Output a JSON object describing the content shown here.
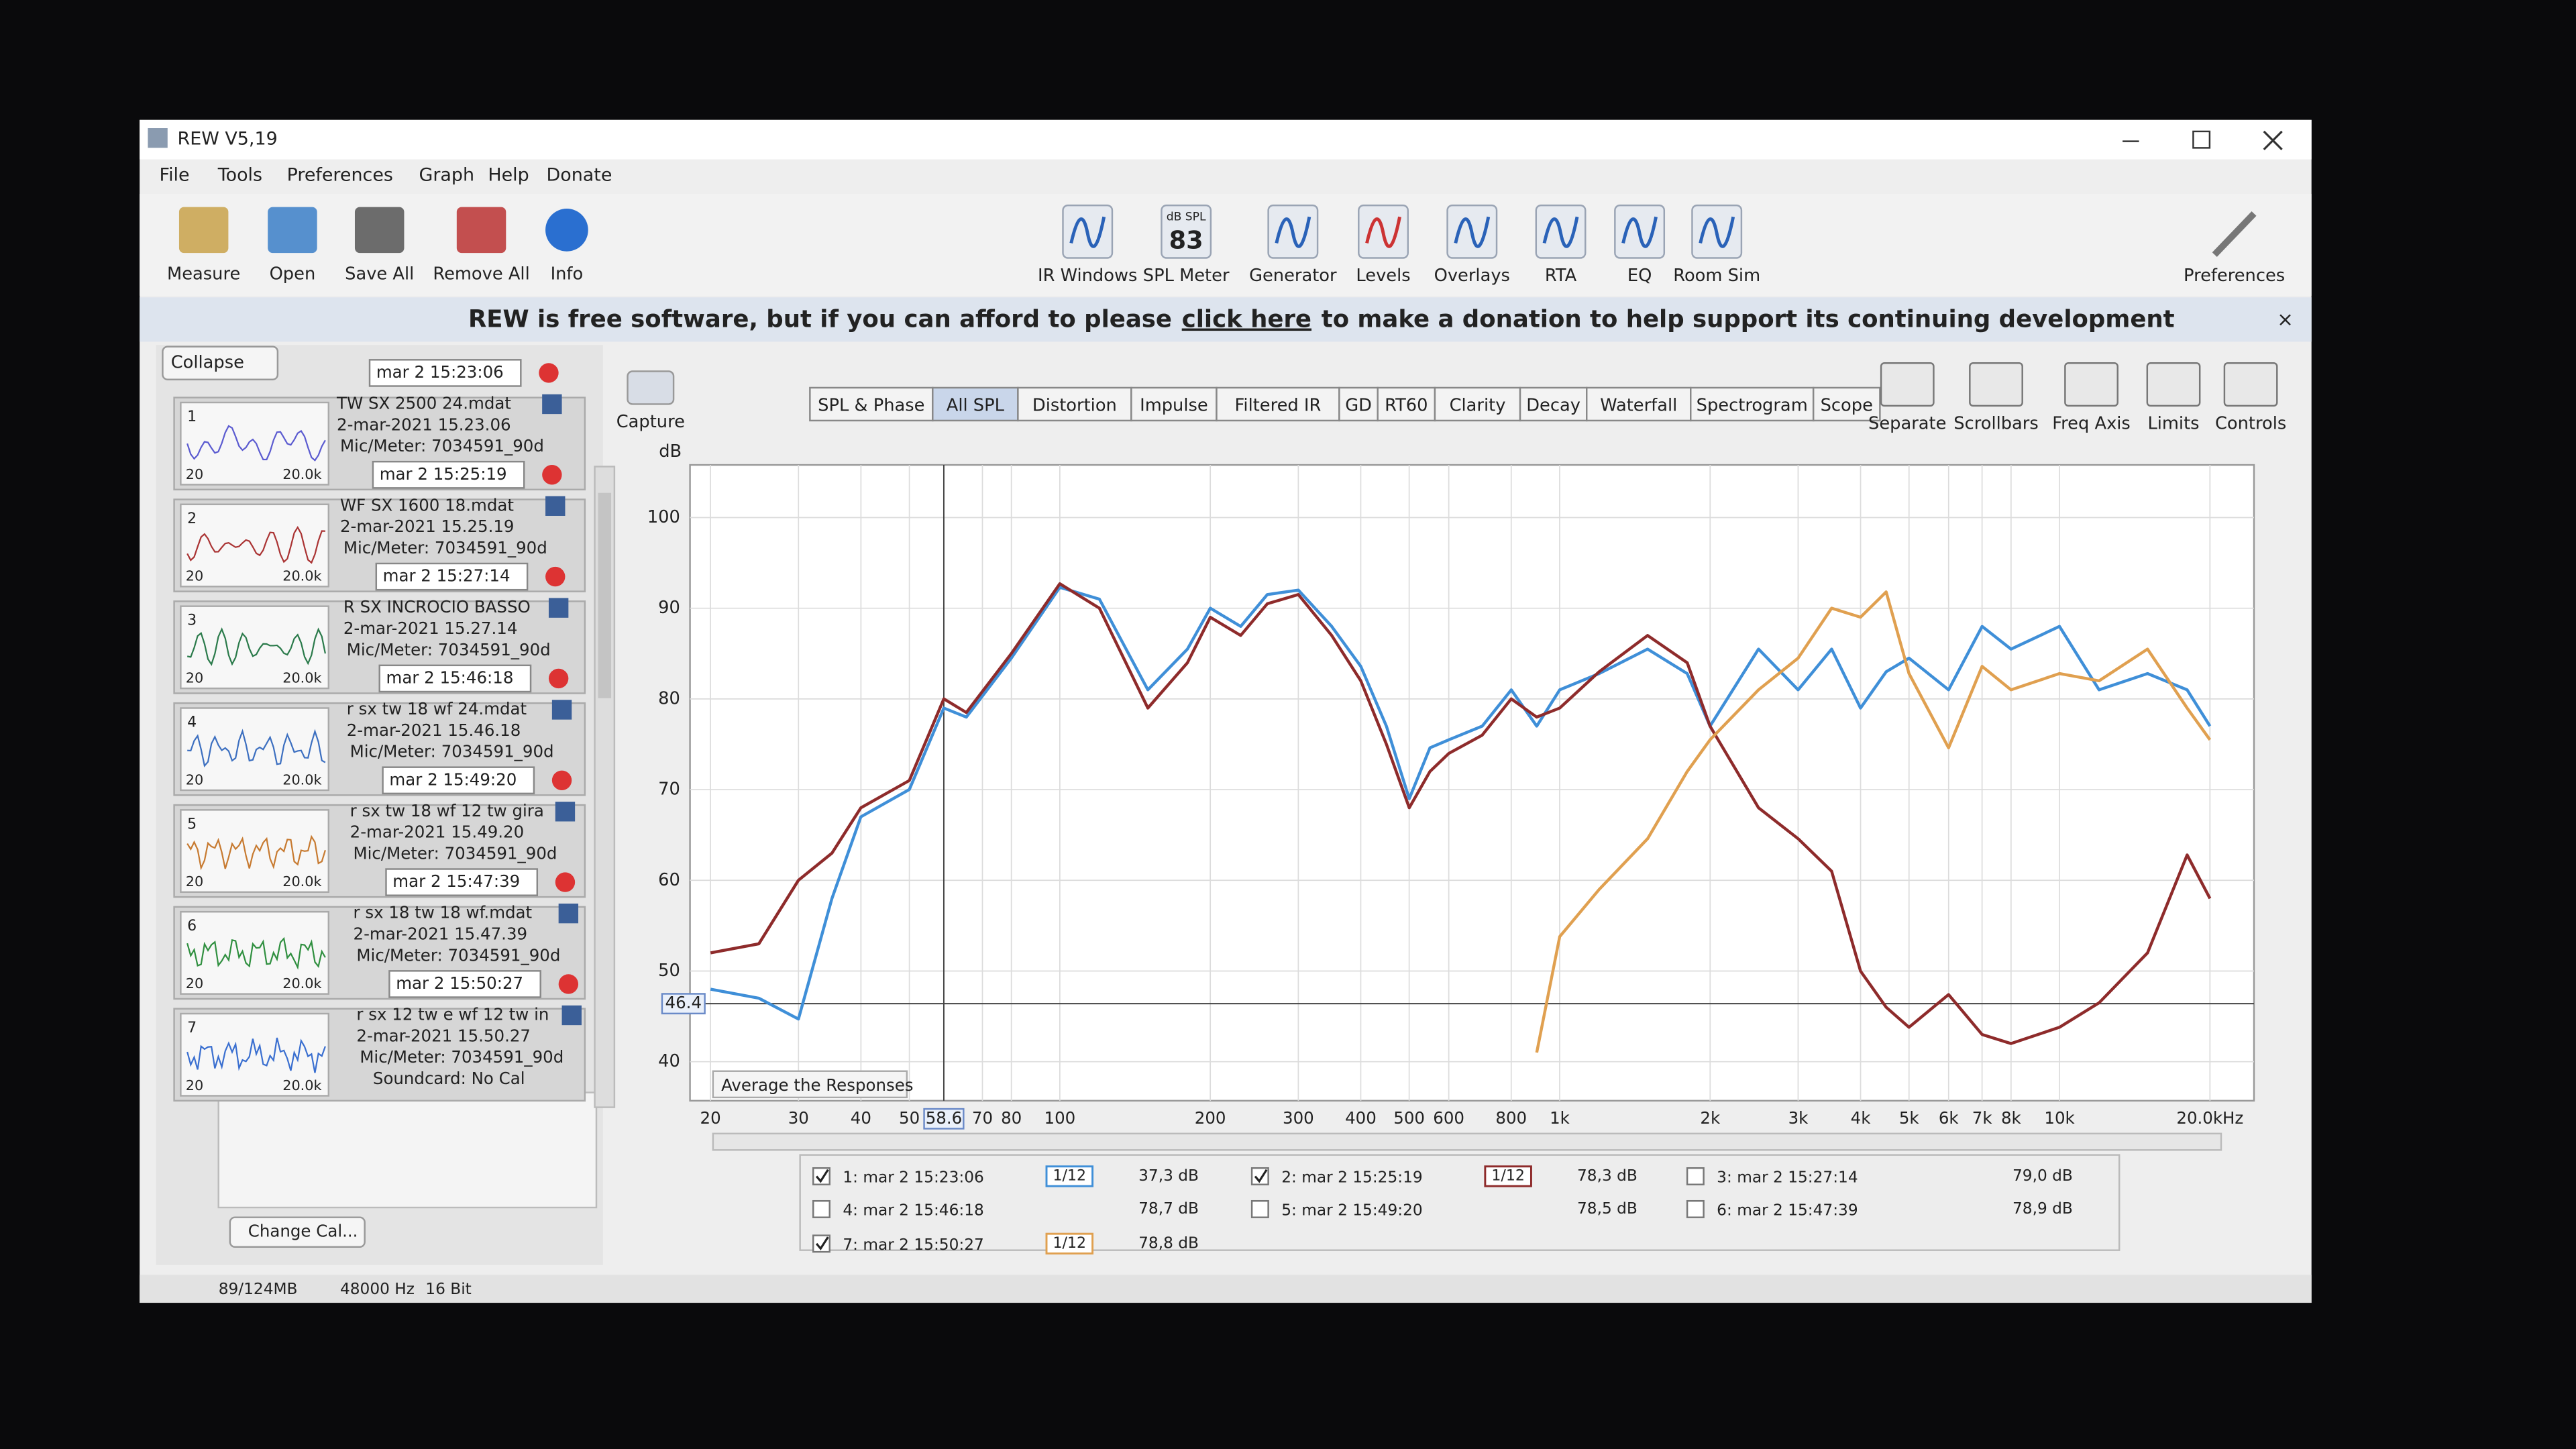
{
  "window": {
    "title": "REW V5,19"
  },
  "menu": [
    "File",
    "Tools",
    "Preferences",
    "Graph",
    "Help",
    "Donate"
  ],
  "toolbar_left": [
    "Measure",
    "Open",
    "Save All",
    "Remove All",
    "Info"
  ],
  "toolbar_center": [
    "IR Windows",
    "SPL Meter",
    "Generator",
    "Levels",
    "Overlays",
    "RTA",
    "EQ",
    "Room Sim"
  ],
  "spl_meter": {
    "unit": "dB SPL",
    "reading": 83
  },
  "toolbar_right": [
    "Preferences"
  ],
  "banner": {
    "before": "REW is free software, but if you can afford to please",
    "link": "click here",
    "after": "to make a donation to help support its continuing development"
  },
  "collapse": "Collapse",
  "thumb_axis": [
    "20",
    "20.0k"
  ],
  "measurements": [
    {
      "index": 1,
      "stamp": "mar 2 15:23:06",
      "name": "TW SX 2500 24.mdat",
      "date": "2-mar-2021 15.23.06",
      "mic": "Mic/Meter: 7034591_90d"
    },
    {
      "index": 2,
      "stamp": "mar 2 15:25:19",
      "name": "WF SX 1600 18.mdat",
      "date": "2-mar-2021 15.25.19",
      "mic": "Mic/Meter: 7034591_90d"
    },
    {
      "index": 3,
      "stamp": "mar 2 15:27:14",
      "name": "R SX INCROCIO BASSO",
      "date": "2-mar-2021 15.27.14",
      "mic": "Mic/Meter: 7034591_90d"
    },
    {
      "index": 4,
      "stamp": "mar 2 15:46:18",
      "name": "r sx tw 18 wf 24.mdat",
      "date": "2-mar-2021 15.46.18",
      "mic": "Mic/Meter: 7034591_90d"
    },
    {
      "index": 5,
      "stamp": "mar 2 15:49:20",
      "name": "r sx tw 18 wf 12 tw gira",
      "date": "2-mar-2021 15.49.20",
      "mic": "Mic/Meter: 7034591_90d"
    },
    {
      "index": 6,
      "stamp": "mar 2 15:47:39",
      "name": "r sx 18 tw 18 wf.mdat",
      "date": "2-mar-2021 15.47.39",
      "mic": "Mic/Meter: 7034591_90d"
    },
    {
      "index": 7,
      "stamp": "mar 2 15:50:27",
      "name": "r sx 12 tw e wf 12 tw in",
      "date": "2-mar-2021 15.50.27",
      "mic": "Mic/Meter: 7034591_90d",
      "soundcard": "Soundcard: No Cal"
    }
  ],
  "change_cal": "Change Cal...",
  "capture": "Capture",
  "tabs": [
    "SPL & Phase",
    "All SPL",
    "Distortion",
    "Impulse",
    "Filtered IR",
    "GD",
    "RT60",
    "Clarity",
    "Decay",
    "Waterfall",
    "Spectrogram",
    "Scope"
  ],
  "active_tab": "All SPL",
  "graph_tools": [
    "Separate",
    "Scrollbars",
    "Freq Axis",
    "Limits",
    "Controls"
  ],
  "graph": {
    "type": "line",
    "y_label": "dB",
    "log_x": true,
    "grid": true,
    "xlim": [
      18.2,
      24500
    ],
    "ylim": [
      35.7,
      105.8
    ],
    "yticks": [
      40,
      50,
      60,
      70,
      80,
      90,
      100
    ],
    "xticks": [
      20,
      30,
      40,
      50,
      70,
      80,
      100,
      200,
      300,
      400,
      500,
      600,
      800,
      {
        "value": 1000,
        "label": "1k"
      },
      {
        "value": 2000,
        "label": "2k"
      },
      {
        "value": 3000,
        "label": "3k"
      },
      {
        "value": 4000,
        "label": "4k"
      },
      {
        "value": 5000,
        "label": "5k"
      },
      {
        "value": 6000,
        "label": "6k"
      },
      {
        "value": 7000,
        "label": "7k"
      },
      {
        "value": 8000,
        "label": "8k"
      },
      {
        "value": 10000,
        "label": "10k"
      },
      {
        "value": 20000,
        "label": "20.0kHz"
      }
    ],
    "cursor": {
      "x": 58.6,
      "y": 46.4
    },
    "annotation": "Average the Responses",
    "x": [
      20,
      25,
      30,
      35,
      40,
      50,
      58.6,
      65,
      80,
      100,
      120,
      150,
      180,
      200,
      230,
      260,
      300,
      350,
      400,
      450,
      500,
      550,
      600,
      700,
      800,
      900,
      1000,
      1200,
      1500,
      1800,
      2000,
      2500,
      3000,
      3500,
      4000,
      4500,
      5000,
      6000,
      7000,
      8000,
      10000,
      12000,
      15000,
      18000,
      20000
    ],
    "series": [
      {
        "name": "1: mar 2 15:23:06",
        "color": "#3f8fd8",
        "values": [
          48,
          47,
          44.7,
          58,
          67,
          70,
          79,
          78,
          84.5,
          92.3,
          91,
          81,
          85.5,
          90,
          88,
          91.5,
          92,
          88,
          83.6,
          77,
          69,
          74.6,
          75.5,
          77,
          81,
          77,
          81,
          82.8,
          85.5,
          82.8,
          77,
          85.5,
          81,
          85.5,
          79,
          83,
          84.5,
          81,
          88,
          85.5,
          88,
          81,
          82.8,
          81,
          77
        ]
      },
      {
        "name": "2: mar 2 15:25:19",
        "color": "#8e2b2b",
        "values": [
          52,
          53,
          60,
          63,
          68,
          71,
          80,
          78.5,
          85,
          92.7,
          90,
          79,
          84,
          89,
          87,
          90.5,
          91.5,
          87,
          82,
          75,
          68,
          72,
          74,
          76,
          80,
          78,
          79,
          83,
          87,
          84,
          77,
          68,
          64.6,
          61,
          50,
          46,
          43.8,
          47.4,
          43,
          42,
          43.8,
          46.5,
          52,
          62.8,
          58
        ]
      },
      {
        "name": "7: mar 2 15:50:27",
        "color": "#e0a050",
        "values": [
          null,
          null,
          null,
          null,
          null,
          null,
          null,
          null,
          null,
          null,
          null,
          null,
          null,
          null,
          null,
          null,
          null,
          null,
          null,
          null,
          null,
          null,
          null,
          null,
          null,
          41,
          53.8,
          59,
          64.6,
          72,
          75.5,
          81,
          84.5,
          90,
          89,
          91.8,
          82.8,
          74.6,
          83.6,
          81,
          82.8,
          82,
          85.5,
          79,
          75.5
        ]
      }
    ]
  },
  "legend": [
    {
      "label": "1: mar 2 15:23:06",
      "checked": true,
      "smoothing": "1/12",
      "level": "37,3 dB"
    },
    {
      "label": "2: mar 2 15:25:19",
      "checked": true,
      "smoothing": "1/12",
      "level": "78,3 dB"
    },
    {
      "label": "3: mar 2 15:27:14",
      "checked": false,
      "level": "79,0 dB"
    },
    {
      "label": "4: mar 2 15:46:18",
      "checked": false,
      "level": "78,7 dB"
    },
    {
      "label": "5: mar 2 15:49:20",
      "checked": false,
      "level": "78,5 dB"
    },
    {
      "label": "6: mar 2 15:47:39",
      "checked": false,
      "level": "78,9 dB"
    },
    {
      "label": "7: mar 2 15:50:27",
      "checked": true,
      "smoothing": "1/12",
      "level": "78,8 dB"
    }
  ],
  "status": [
    "89/124MB",
    "48000 Hz",
    "16 Bit"
  ]
}
